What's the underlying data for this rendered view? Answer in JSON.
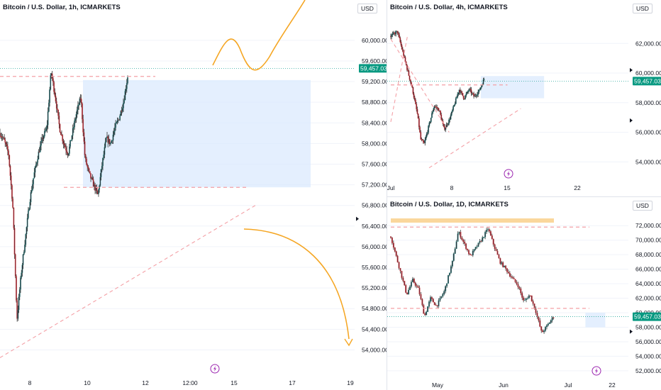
{
  "panels": [
    {
      "id": "p1h",
      "title": "Bitcoin / U.S. Dollar, 1h, ICMARKETS",
      "currency": "USD",
      "last_price": "59,457.03",
      "y_ticks": [
        "60,000.00",
        "59,600.00",
        "59,200.00",
        "58,800.00",
        "58,400.00",
        "58,000.00",
        "57,600.00",
        "57,200.00",
        "56,800.00",
        "56,400.00",
        "56,000.00",
        "55,600.00",
        "55,200.00",
        "54,800.00",
        "54,400.00",
        "54,000.00"
      ],
      "x_ticks": [
        "8",
        "10",
        "12",
        "12:00",
        "15",
        "17",
        "19"
      ]
    },
    {
      "id": "p4h",
      "title": "Bitcoin / U.S. Dollar, 4h, ICMARKETS",
      "currency": "USD",
      "last_price": "59,457.03",
      "y_ticks": [
        "62,000.00",
        "60,000.00",
        "58,000.00",
        "56,000.00",
        "54,000.00"
      ],
      "x_ticks": [
        "Jul",
        "8",
        "15",
        "22"
      ]
    },
    {
      "id": "p1d",
      "title": "Bitcoin / U.S. Dollar, 1D, ICMARKETS",
      "currency": "USD",
      "last_price": "59,457.03",
      "y_ticks": [
        "72,000.00",
        "70,000.00",
        "68,000.00",
        "66,000.00",
        "64,000.00",
        "62,000.00",
        "60,000.00",
        "58,000.00",
        "56,000.00",
        "54,000.00",
        "52,000.00"
      ],
      "x_ticks": [
        "May",
        "Jun",
        "Jul",
        "22"
      ]
    }
  ],
  "chart_data": [
    {
      "type": "candlestick",
      "title": "Bitcoin / U.S. Dollar, 1h, ICMARKETS",
      "ylim": [
        53800,
        60300
      ],
      "last_price": 59457.03,
      "zone": {
        "from": 57150,
        "to": 59230
      },
      "resistance": 59300,
      "support": 57150,
      "path": [
        [
          0,
          58200
        ],
        [
          0.02,
          58050
        ],
        [
          0.04,
          57800
        ],
        [
          0.06,
          56800
        ],
        [
          0.08,
          54600
        ],
        [
          0.1,
          55500
        ],
        [
          0.12,
          56200
        ],
        [
          0.14,
          56900
        ],
        [
          0.16,
          57400
        ],
        [
          0.18,
          57800
        ],
        [
          0.2,
          58100
        ],
        [
          0.22,
          58300
        ],
        [
          0.24,
          59400
        ],
        [
          0.26,
          58900
        ],
        [
          0.28,
          58300
        ],
        [
          0.3,
          58000
        ],
        [
          0.32,
          57800
        ],
        [
          0.34,
          58200
        ],
        [
          0.36,
          58600
        ],
        [
          0.38,
          58900
        ],
        [
          0.4,
          57700
        ],
        [
          0.42,
          57400
        ],
        [
          0.44,
          57200
        ],
        [
          0.46,
          57000
        ],
        [
          0.48,
          57600
        ],
        [
          0.5,
          58100
        ],
        [
          0.52,
          58000
        ],
        [
          0.54,
          58300
        ],
        [
          0.56,
          58500
        ],
        [
          0.58,
          58800
        ],
        [
          0.6,
          59300
        ]
      ]
    },
    {
      "type": "candlestick",
      "title": "Bitcoin / U.S. Dollar, 4h, ICMARKETS",
      "ylim": [
        53200,
        63500
      ],
      "last_price": 59457.03,
      "zone": {
        "from": 58300,
        "to": 59800
      },
      "path": [
        [
          0,
          62500
        ],
        [
          0.04,
          62800
        ],
        [
          0.07,
          61500
        ],
        [
          0.1,
          60200
        ],
        [
          0.13,
          58900
        ],
        [
          0.16,
          57200
        ],
        [
          0.18,
          55500
        ],
        [
          0.2,
          55200
        ],
        [
          0.23,
          56500
        ],
        [
          0.26,
          57800
        ],
        [
          0.29,
          57500
        ],
        [
          0.32,
          56200
        ],
        [
          0.35,
          56800
        ],
        [
          0.38,
          57800
        ],
        [
          0.41,
          58900
        ],
        [
          0.44,
          58300
        ],
        [
          0.47,
          58900
        ],
        [
          0.5,
          58400
        ],
        [
          0.53,
          58800
        ],
        [
          0.56,
          59600
        ]
      ]
    },
    {
      "type": "candlestick",
      "title": "Bitcoin / U.S. Dollar, 1D, ICMARKETS",
      "ylim": [
        51500,
        73000
      ],
      "last_price": 59457.03,
      "zone": {
        "from": 58000,
        "to": 60000
      },
      "resistance": 71800,
      "support": 60600,
      "path": [
        [
          0,
          70500
        ],
        [
          0.04,
          66500
        ],
        [
          0.08,
          62500
        ],
        [
          0.11,
          64500
        ],
        [
          0.14,
          63200
        ],
        [
          0.17,
          59500
        ],
        [
          0.2,
          62000
        ],
        [
          0.23,
          60900
        ],
        [
          0.27,
          63000
        ],
        [
          0.31,
          67000
        ],
        [
          0.34,
          71200
        ],
        [
          0.37,
          69500
        ],
        [
          0.4,
          67800
        ],
        [
          0.43,
          69000
        ],
        [
          0.46,
          70200
        ],
        [
          0.49,
          71600
        ],
        [
          0.52,
          69200
        ],
        [
          0.55,
          67000
        ],
        [
          0.58,
          66000
        ],
        [
          0.61,
          64800
        ],
        [
          0.64,
          63800
        ],
        [
          0.67,
          61500
        ],
        [
          0.7,
          62500
        ],
        [
          0.73,
          60200
        ],
        [
          0.76,
          57200
        ],
        [
          0.79,
          58300
        ],
        [
          0.82,
          59500
        ]
      ]
    }
  ]
}
